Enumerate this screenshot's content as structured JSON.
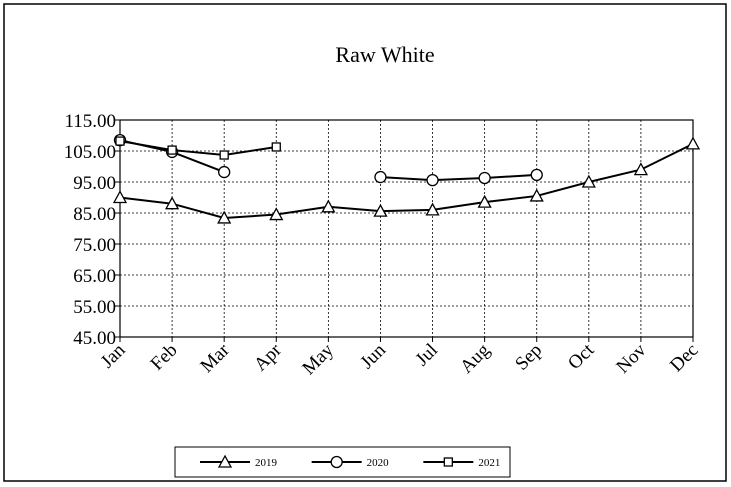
{
  "chart_data": {
    "type": "line",
    "title": "Raw White",
    "categories": [
      "Jan",
      "Feb",
      "Mar",
      "Apr",
      "May",
      "Jun",
      "Jul",
      "Aug",
      "Sep",
      "Oct",
      "Nov",
      "Dec"
    ],
    "series": [
      {
        "name": "2019",
        "color": "#000000",
        "marker": "triangle",
        "values": [
          90,
          88,
          83.4,
          84.5,
          87,
          85.6,
          86,
          88.5,
          90.5,
          95,
          99,
          107.3
        ]
      },
      {
        "name": "2020",
        "color": "#000000",
        "marker": "circle",
        "values": [
          108.5,
          104.7,
          98.2,
          null,
          null,
          96.6,
          95.6,
          96.3,
          97.3,
          null,
          null,
          null
        ]
      },
      {
        "name": "2021",
        "color": "#000000",
        "marker": "square",
        "values": [
          108.2,
          105.3,
          103.7,
          106.3,
          null,
          null,
          null,
          null,
          null,
          null,
          null,
          null
        ]
      }
    ],
    "ylim": [
      45,
      115
    ],
    "yticks": [
      {
        "value": 45,
        "label": "45.00"
      },
      {
        "value": 55,
        "label": "55.00"
      },
      {
        "value": 65,
        "label": "65.00"
      },
      {
        "value": 75,
        "label": "75.00"
      },
      {
        "value": 85,
        "label": "85.00"
      },
      {
        "value": 95,
        "label": "95.00"
      },
      {
        "value": 105,
        "label": "105.00"
      },
      {
        "value": 115,
        "label": "115.00"
      }
    ],
    "grid": true,
    "legend": "bottom"
  }
}
